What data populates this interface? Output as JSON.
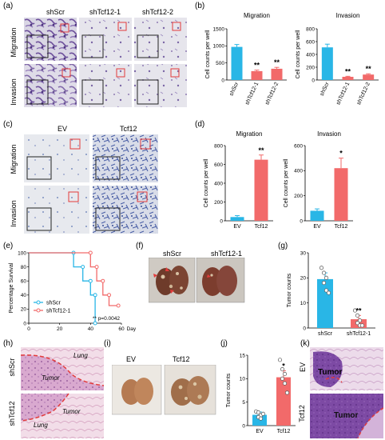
{
  "panels": {
    "a": {
      "letter": "(a)",
      "cols": [
        "shScr",
        "shTcf12-1",
        "shTcf12-2"
      ],
      "rows": [
        "Migration",
        "Invasion"
      ]
    },
    "b": {
      "letter": "(b)"
    },
    "c": {
      "letter": "(c)",
      "cols": [
        "EV",
        "Tcf12"
      ],
      "rows": [
        "Migration",
        "Invasion"
      ]
    },
    "d": {
      "letter": "(d)"
    },
    "e": {
      "letter": "(e)"
    },
    "f": {
      "letter": "(f)",
      "cols": [
        "shScr",
        "shTcf12-1"
      ]
    },
    "g": {
      "letter": "(g)"
    },
    "h": {
      "letter": "(h)",
      "rows": [
        "shScr",
        "shTcf12"
      ],
      "top_labels": [
        "Lung",
        "Tumor"
      ],
      "bottom_labels": [
        "Tumor",
        "Lung"
      ]
    },
    "i": {
      "letter": "(i)",
      "cols": [
        "EV",
        "Tcf12"
      ]
    },
    "j": {
      "letter": "(j)"
    },
    "k": {
      "letter": "(k)",
      "rows": [
        "EV",
        "Tcf12"
      ],
      "labels": [
        "Tumor",
        "Tumor"
      ]
    }
  },
  "colors": {
    "blue": "#29b6e6",
    "red": "#f26a6a",
    "frame_red": "#e33b3b"
  },
  "chart_data": [
    {
      "id": "b-migration",
      "type": "bar",
      "title": "Migration",
      "ylabel": "Cell counts per well",
      "categories": [
        "shScr",
        "shTcf12-1",
        "shTcf12-2"
      ],
      "values": [
        970,
        260,
        330
      ],
      "errors": [
        70,
        30,
        40
      ],
      "ylim": [
        0,
        1500
      ],
      "yticks": [
        0,
        500,
        1000,
        1500
      ],
      "annotations": [
        "",
        "**",
        "**"
      ]
    },
    {
      "id": "b-invasion",
      "type": "bar",
      "title": "Invasion",
      "ylabel": "Cell counts per well",
      "categories": [
        "shScr",
        "shTcf12-1",
        "shTcf12-2"
      ],
      "values": [
        510,
        50,
        85
      ],
      "errors": [
        50,
        8,
        12
      ],
      "ylim": [
        0,
        800
      ],
      "yticks": [
        0,
        200,
        400,
        600,
        800
      ],
      "annotations": [
        "",
        "**",
        "**"
      ]
    },
    {
      "id": "d-migration",
      "type": "bar",
      "title": "Migration",
      "ylabel": "Cell counts per well",
      "categories": [
        "EV",
        "Tcf12"
      ],
      "values": [
        40,
        650
      ],
      "errors": [
        15,
        50
      ],
      "ylim": [
        0,
        800
      ],
      "yticks": [
        0,
        200,
        400,
        600,
        800
      ],
      "annotations": [
        "",
        "**"
      ]
    },
    {
      "id": "d-invasion",
      "type": "bar",
      "title": "Invasion",
      "ylabel": "Cell counts per well",
      "categories": [
        "EV",
        "Tcf12"
      ],
      "values": [
        80,
        420
      ],
      "errors": [
        15,
        80
      ],
      "ylim": [
        0,
        600
      ],
      "yticks": [
        0,
        200,
        400,
        600
      ],
      "annotations": [
        "",
        "*"
      ]
    },
    {
      "id": "e-survival",
      "type": "line",
      "ylabel": "Percentage Survival",
      "xlabel": "Days",
      "xlim": [
        0,
        60
      ],
      "ylim": [
        0,
        100
      ],
      "xticks": [
        0,
        20,
        40,
        60
      ],
      "yticks": [
        0,
        20,
        40,
        60,
        80,
        100
      ],
      "series": [
        {
          "name": "shScr",
          "x": [
            0,
            29,
            29,
            35,
            35,
            40,
            40,
            43,
            43
          ],
          "y": [
            100,
            100,
            80,
            80,
            60,
            60,
            40,
            40,
            0
          ]
        },
        {
          "name": "shTcf12-1",
          "x": [
            0,
            40,
            40,
            44,
            44,
            48,
            48,
            52,
            52,
            58
          ],
          "y": [
            100,
            100,
            80,
            80,
            60,
            60,
            40,
            40,
            25,
            25
          ]
        }
      ],
      "pvalue_text": "** p=0.0042"
    },
    {
      "id": "g-tumor",
      "type": "bar",
      "ylabel": "Tumor counts",
      "categories": [
        "shScr",
        "shTcf12-1"
      ],
      "values": [
        19.5,
        3.5
      ],
      "errors": [
        2.5,
        1.5
      ],
      "points": [
        [
          24,
          22,
          20,
          18,
          15,
          14
        ],
        [
          7,
          5,
          3,
          2,
          1,
          1
        ]
      ],
      "ylim": [
        0,
        30
      ],
      "yticks": [
        0,
        10,
        20,
        30
      ],
      "annotations": [
        "",
        "**"
      ]
    },
    {
      "id": "j-tumor",
      "type": "bar",
      "ylabel": "Tumor counts",
      "categories": [
        "EV",
        "Tcf12"
      ],
      "values": [
        2.3,
        10.3
      ],
      "errors": [
        0.6,
        1.4
      ],
      "points": [
        [
          3,
          2.8,
          2.2,
          1.8,
          1.5,
          2.5
        ],
        [
          14,
          12,
          11,
          10,
          9,
          7
        ]
      ],
      "ylim": [
        0,
        15
      ],
      "yticks": [
        0,
        5,
        10,
        15
      ],
      "annotations": [
        "",
        "*"
      ]
    }
  ]
}
